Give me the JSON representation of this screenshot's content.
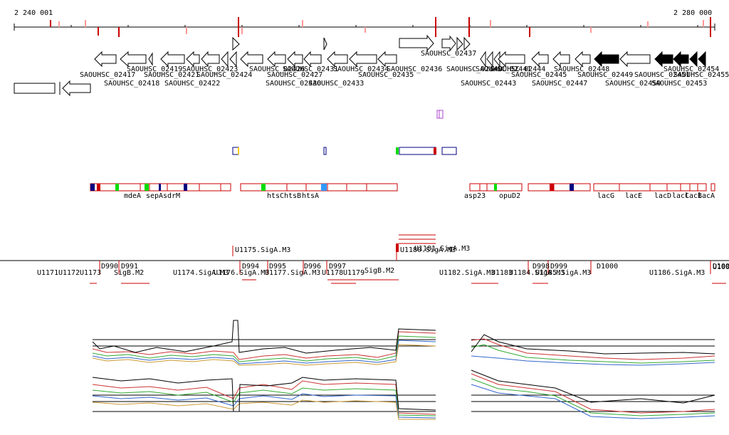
{
  "coords": {
    "start": "2 240 001",
    "end": "2 280 000"
  },
  "colors": {
    "accent_red": "#cc0000",
    "light_red": "#ff9999",
    "green": "#00dd00",
    "blue": "#000080",
    "purple": "#aa44cc",
    "light_blue": "#3399ff"
  },
  "genes": [
    "SAOUHSC_02417",
    "SAOUHSC_02418",
    "SAOUHSC_02419",
    "SAOUHSC_02421",
    "SAOUHSC_02422",
    "SAOUHSC_02423",
    "SAOUHSC_02424",
    "SAOUHSC_02426",
    "SAOUHSC_02427",
    "SAOUHSC_02430",
    "SAOUHSC_02431",
    "SAOUHSC_02433",
    "SAOUHSC_02434",
    "SAOUHSC_02435",
    "SAOUHSC_02436",
    "SAOUHSC_02437",
    "SAOUHSC_02440",
    "SAOUHSC_02441",
    "SAOUHSC_02443",
    "SAOUHSC_02444",
    "SAOUHSC_02445",
    "SAOUHSC_02447",
    "SAOUHSC_02448",
    "SAOUHSC_02449",
    "SAOUHSC_02450",
    "SAOUHSC_02451",
    "SAOUHSC_02453",
    "SAOUHSC_02454",
    "SAOUHSC_02455"
  ],
  "operon_genes": [
    "mdeA",
    "sepA",
    "sdrM",
    "htsC",
    "htsB",
    "htsA",
    "asp23",
    "opuD2",
    "lacG",
    "lacE",
    "lacD",
    "lacC",
    "lacB",
    "lacA"
  ],
  "units": [
    "U1171",
    "U1172",
    "U1173",
    "SigB.M2",
    "U1174.SigA.M3",
    "U1175.SigA.M3",
    "U1176.SigA.M3",
    "U1177.SigA.M3",
    "U1178",
    "U1179",
    "SigB.M2",
    "U1180.SigA.M3",
    "U1181.SigA.M3",
    "U1182.SigA.M3",
    "U1183",
    "U1184.SigA.M3",
    "U1185.SigA.M3",
    "U1186.SigA.M3",
    "U100"
  ],
  "downstream": [
    "D990",
    "D991",
    "D994",
    "D995",
    "D996",
    "D997",
    "D998",
    "D999",
    "D1000",
    "D100"
  ]
}
